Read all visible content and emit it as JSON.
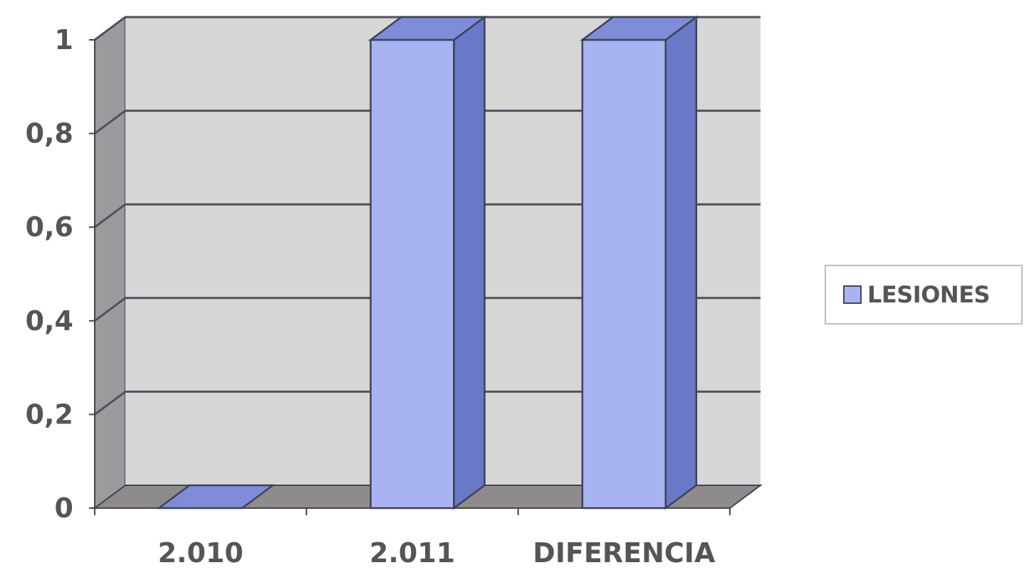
{
  "chart_data": {
    "type": "bar",
    "categories": [
      "2.010",
      "2.011",
      "DIFERENCIA"
    ],
    "series": [
      {
        "name": "LESIONES",
        "values": [
          0,
          1,
          1
        ]
      }
    ],
    "ylim": [
      0,
      1
    ],
    "yticks": [
      "0",
      "0,2",
      "0,4",
      "0,6",
      "0,8",
      "1"
    ],
    "grid": true,
    "legend_position": "right",
    "three_d": true,
    "colors": {
      "bar_front": "#a8b4f2",
      "bar_side": "#6a78c8",
      "bar_top": "#7f8cda",
      "bar_edge": "#3e4258",
      "back_wall": "#d6d6d6",
      "side_wall": "#9c9a9d",
      "floor": "#8f8b8c",
      "grid": "#505060"
    }
  },
  "legend": {
    "label": "LESIONES"
  }
}
